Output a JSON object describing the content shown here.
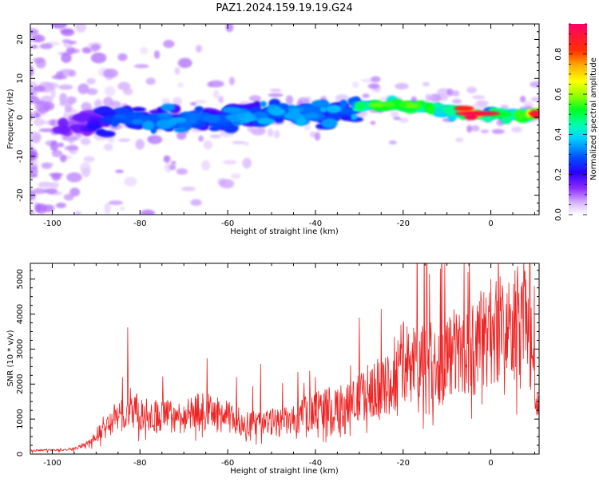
{
  "title": "PAZ1.2024.159.19.19.G24",
  "colors": {
    "snr_line": "#ee2222",
    "axis": "#000000",
    "spectrogram_palette": [
      "#ffffff",
      "#e6ccff",
      "#b070ff",
      "#6a00ff",
      "#2a00ff",
      "#0050ff",
      "#00c8ff",
      "#00ffb0",
      "#00ff30",
      "#a0ff00",
      "#ffff00",
      "#ffb000",
      "#ff3000",
      "#ff0060"
    ]
  },
  "chart_data": [
    {
      "type": "heatmap",
      "title": "PAZ1.2024.159.19.19.G24",
      "xlabel": "Height of straight line (km)",
      "ylabel": "Frequency (Hz)",
      "xlim": [
        -105,
        11
      ],
      "ylim": [
        -25,
        24
      ],
      "x_ticks": [
        -100,
        -80,
        -60,
        -40,
        -20,
        0
      ],
      "y_ticks": [
        -20,
        -10,
        0,
        10,
        20
      ],
      "colorbar": {
        "label": "Normalized spectral amplitude",
        "range": [
          0,
          0.95
        ],
        "ticks": [
          0.0,
          0.2,
          0.4,
          0.6,
          0.8
        ]
      },
      "ridge": {
        "description_points_height_km": [
          -95,
          -85,
          -75,
          -65,
          -55,
          -45,
          -35,
          -28,
          -20,
          -10,
          -5,
          0,
          5,
          10
        ],
        "center_frequency_hz": [
          -2.5,
          0,
          -1,
          0,
          1,
          1.5,
          1,
          3,
          3,
          2,
          1,
          0.5,
          0.5,
          1
        ],
        "peak_amplitude": [
          0.15,
          0.3,
          0.35,
          0.3,
          0.35,
          0.35,
          0.35,
          0.55,
          0.55,
          0.5,
          0.95,
          0.5,
          0.5,
          0.9
        ]
      }
    },
    {
      "type": "line",
      "xlabel": "Height of straight line (km)",
      "ylabel": "SNR (10 * v/v)",
      "xlim": [
        -105,
        11
      ],
      "ylim": [
        0,
        5450
      ],
      "x_ticks": [
        -100,
        -80,
        -60,
        -40,
        -20,
        0
      ],
      "y_ticks": [
        0,
        1000,
        2000,
        3000,
        4000,
        5000
      ],
      "series": [
        {
          "x": [
            -105,
            -100,
            -95,
            -92,
            -90,
            -88,
            -86,
            -84,
            -83,
            -80,
            -75,
            -70,
            -66,
            -60,
            -55,
            -50,
            -45,
            -42,
            -40,
            -35,
            -32,
            -30,
            -26,
            -24,
            -22,
            -20,
            -18,
            -15,
            -12,
            -10,
            -8,
            -5,
            -2,
            0,
            2,
            4,
            5,
            6,
            7,
            8,
            9,
            10,
            11
          ],
          "values": [
            100,
            120,
            150,
            300,
            500,
            800,
            1000,
            1100,
            1500,
            1100,
            1100,
            1050,
            1250,
            1050,
            850,
            900,
            950,
            1150,
            1300,
            1350,
            1400,
            1600,
            2000,
            1900,
            2150,
            2700,
            2600,
            2800,
            2500,
            2850,
            2900,
            2850,
            3300,
            3500,
            3650,
            3600,
            3400,
            3700,
            4000,
            3900,
            3200,
            2000,
            1200
          ]
        }
      ]
    }
  ]
}
